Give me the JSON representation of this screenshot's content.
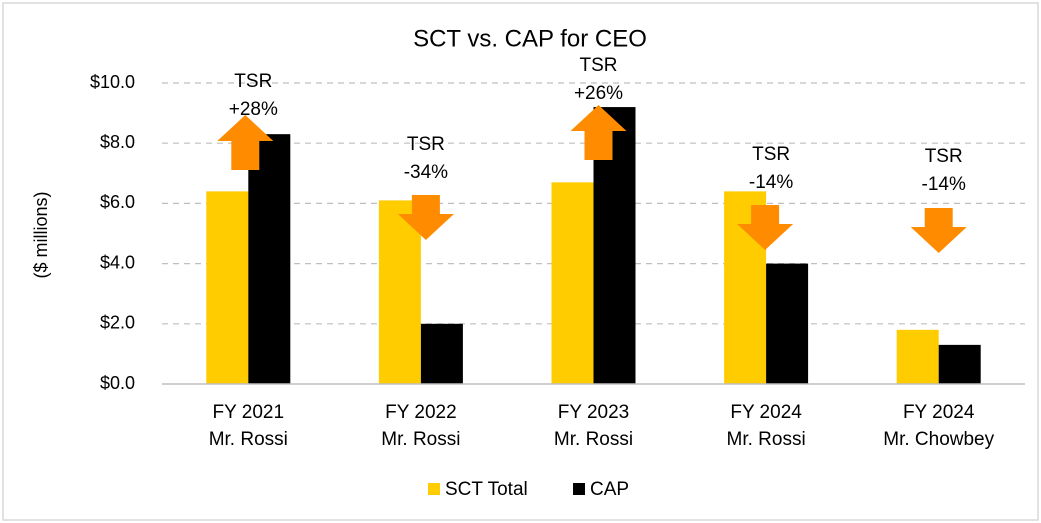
{
  "chart_data": {
    "type": "bar",
    "title": "SCT vs. CAP for CEO",
    "y_label": "($ millions)",
    "categories": [
      [
        "FY 2021",
        "Mr. Rossi"
      ],
      [
        "FY 2022",
        "Mr. Rossi"
      ],
      [
        "FY 2023",
        "Mr. Rossi"
      ],
      [
        "FY 2024",
        "Mr. Rossi"
      ],
      [
        "FY 2024",
        "Mr. Chowbey"
      ]
    ],
    "series": [
      {
        "name": "SCT Total",
        "color": "#ffcc00",
        "values": [
          6.4,
          6.1,
          6.7,
          6.4,
          1.8
        ]
      },
      {
        "name": "CAP",
        "color": "#000000",
        "values": [
          8.3,
          2.0,
          9.2,
          4.0,
          1.3
        ]
      }
    ],
    "ylim": [
      0,
      10
    ],
    "yticks": [
      {
        "value": 0,
        "label": "$0.0"
      },
      {
        "value": 2,
        "label": "$2.0"
      },
      {
        "value": 4,
        "label": "$4.0"
      },
      {
        "value": 6,
        "label": "$6.0"
      },
      {
        "value": 8,
        "label": "$8.0"
      },
      {
        "value": 10,
        "label": "$10.0"
      }
    ],
    "grid": true,
    "legend": "bottom",
    "annotations": [
      {
        "lines": [
          "TSR",
          "+28%"
        ],
        "direction": "up"
      },
      {
        "lines": [
          "TSR",
          "-34%"
        ],
        "direction": "down"
      },
      {
        "lines": [
          "TSR",
          "+26%"
        ],
        "direction": "up"
      },
      {
        "lines": [
          "TSR",
          "-14%"
        ],
        "direction": "down"
      },
      {
        "lines": [
          "TSR",
          "-14%"
        ],
        "direction": "down"
      }
    ],
    "annotation_color": "#ff8c00"
  }
}
